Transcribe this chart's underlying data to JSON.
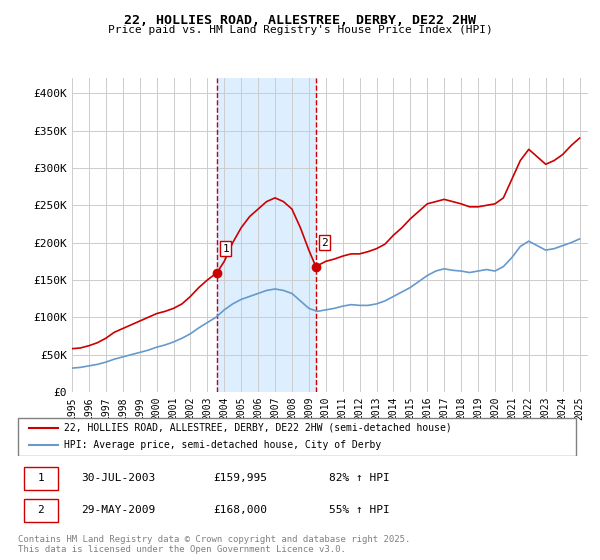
{
  "title1": "22, HOLLIES ROAD, ALLESTREE, DERBY, DE22 2HW",
  "title2": "Price paid vs. HM Land Registry's House Price Index (HPI)",
  "ylabel_ticks": [
    "£0",
    "£50K",
    "£100K",
    "£150K",
    "£200K",
    "£250K",
    "£300K",
    "£350K",
    "£400K"
  ],
  "ytick_values": [
    0,
    50000,
    100000,
    150000,
    200000,
    250000,
    300000,
    350000,
    400000
  ],
  "ylim": [
    0,
    420000
  ],
  "xlim_start": 1995.0,
  "xlim_end": 2025.5,
  "xtick_years": [
    1995,
    1996,
    1997,
    1998,
    1999,
    2000,
    2001,
    2002,
    2003,
    2004,
    2005,
    2006,
    2007,
    2008,
    2009,
    2010,
    2011,
    2012,
    2013,
    2014,
    2015,
    2016,
    2017,
    2018,
    2019,
    2020,
    2021,
    2022,
    2023,
    2024,
    2025
  ],
  "sale1_x": 2003.58,
  "sale1_y": 159995,
  "sale1_label": "1",
  "sale2_x": 2009.41,
  "sale2_y": 168000,
  "sale2_label": "2",
  "red_color": "#cc0000",
  "blue_color": "#6699cc",
  "shade_color": "#ddeeff",
  "sale_marker_color": "#cc0000",
  "vline_color": "#cc0000",
  "grid_color": "#cccccc",
  "background_color": "#ffffff",
  "legend1_text": "22, HOLLIES ROAD, ALLESTREE, DERBY, DE22 2HW (semi-detached house)",
  "legend2_text": "HPI: Average price, semi-detached house, City of Derby",
  "table_data": [
    {
      "num": "1",
      "date": "30-JUL-2003",
      "price": "£159,995",
      "hpi": "82% ↑ HPI"
    },
    {
      "num": "2",
      "date": "29-MAY-2009",
      "price": "£168,000",
      "hpi": "55% ↑ HPI"
    }
  ],
  "footnote": "Contains HM Land Registry data © Crown copyright and database right 2025.\nThis data is licensed under the Open Government Licence v3.0.",
  "red_x": [
    1995.0,
    1995.5,
    1996.0,
    1996.5,
    1997.0,
    1997.5,
    1998.0,
    1998.5,
    1999.0,
    1999.5,
    2000.0,
    2000.5,
    2001.0,
    2001.5,
    2002.0,
    2002.5,
    2003.0,
    2003.58,
    2004.0,
    2004.5,
    2005.0,
    2005.5,
    2006.0,
    2006.5,
    2007.0,
    2007.5,
    2008.0,
    2008.5,
    2009.0,
    2009.41,
    2010.0,
    2010.5,
    2011.0,
    2011.5,
    2012.0,
    2012.5,
    2013.0,
    2013.5,
    2014.0,
    2014.5,
    2015.0,
    2015.5,
    2016.0,
    2016.5,
    2017.0,
    2017.5,
    2018.0,
    2018.5,
    2019.0,
    2019.5,
    2020.0,
    2020.5,
    2021.0,
    2021.5,
    2022.0,
    2022.5,
    2023.0,
    2023.5,
    2024.0,
    2024.5,
    2025.0
  ],
  "red_y": [
    58000,
    59000,
    62000,
    66000,
    72000,
    80000,
    85000,
    90000,
    95000,
    100000,
    105000,
    108000,
    112000,
    118000,
    128000,
    140000,
    150000,
    159995,
    175000,
    200000,
    220000,
    235000,
    245000,
    255000,
    260000,
    255000,
    245000,
    220000,
    190000,
    168000,
    175000,
    178000,
    182000,
    185000,
    185000,
    188000,
    192000,
    198000,
    210000,
    220000,
    232000,
    242000,
    252000,
    255000,
    258000,
    255000,
    252000,
    248000,
    248000,
    250000,
    252000,
    260000,
    285000,
    310000,
    325000,
    315000,
    305000,
    310000,
    318000,
    330000,
    340000
  ],
  "blue_x": [
    1995.0,
    1995.5,
    1996.0,
    1996.5,
    1997.0,
    1997.5,
    1998.0,
    1998.5,
    1999.0,
    1999.5,
    2000.0,
    2000.5,
    2001.0,
    2001.5,
    2002.0,
    2002.5,
    2003.0,
    2003.5,
    2004.0,
    2004.5,
    2005.0,
    2005.5,
    2006.0,
    2006.5,
    2007.0,
    2007.5,
    2008.0,
    2008.5,
    2009.0,
    2009.5,
    2010.0,
    2010.5,
    2011.0,
    2011.5,
    2012.0,
    2012.5,
    2013.0,
    2013.5,
    2014.0,
    2014.5,
    2015.0,
    2015.5,
    2016.0,
    2016.5,
    2017.0,
    2017.5,
    2018.0,
    2018.5,
    2019.0,
    2019.5,
    2020.0,
    2020.5,
    2021.0,
    2021.5,
    2022.0,
    2022.5,
    2023.0,
    2023.5,
    2024.0,
    2024.5,
    2025.0
  ],
  "blue_y": [
    32000,
    33000,
    35000,
    37000,
    40000,
    44000,
    47000,
    50000,
    53000,
    56000,
    60000,
    63000,
    67000,
    72000,
    78000,
    86000,
    93000,
    100000,
    110000,
    118000,
    124000,
    128000,
    132000,
    136000,
    138000,
    136000,
    132000,
    122000,
    112000,
    108000,
    110000,
    112000,
    115000,
    117000,
    116000,
    116000,
    118000,
    122000,
    128000,
    134000,
    140000,
    148000,
    156000,
    162000,
    165000,
    163000,
    162000,
    160000,
    162000,
    164000,
    162000,
    168000,
    180000,
    195000,
    202000,
    196000,
    190000,
    192000,
    196000,
    200000,
    205000
  ]
}
